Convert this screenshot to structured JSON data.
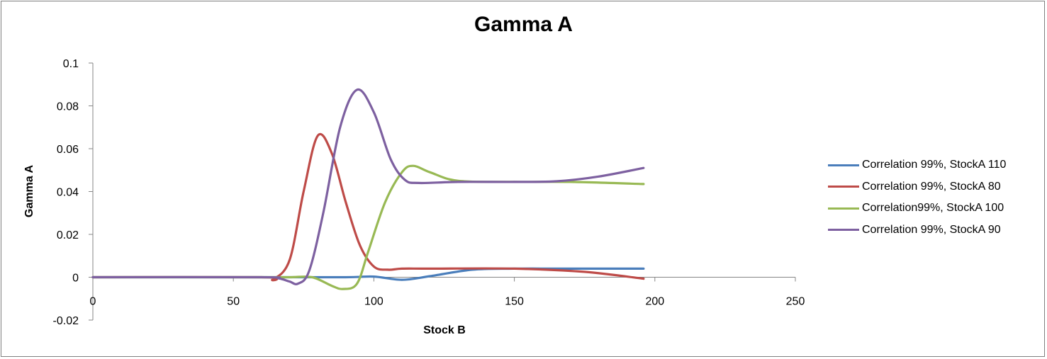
{
  "chart_data": {
    "type": "line",
    "title": "Gamma A",
    "xlabel": "Stock B",
    "ylabel": "Gamma A",
    "xlim": [
      0,
      250
    ],
    "ylim": [
      -0.02,
      0.1
    ],
    "x_ticks": [
      "0",
      "50",
      "100",
      "150",
      "200",
      "250"
    ],
    "y_ticks": [
      "-0.02",
      "0",
      "0.02",
      "0.04",
      "0.06",
      "0.08",
      "0.1"
    ],
    "legend_position": "right",
    "grid": false,
    "series": [
      {
        "name": "Correlation 99%, StockA 110",
        "color": "#4a7ebb",
        "x": [
          0,
          60,
          90,
          100,
          110,
          120,
          135,
          150,
          170,
          196
        ],
        "y": [
          0,
          0,
          0,
          0.0003,
          -0.0012,
          0.0005,
          0.0035,
          0.004,
          0.004,
          0.004
        ]
      },
      {
        "name": "Correlation 99%, StockA 80",
        "color": "#be4b48",
        "x": [
          0,
          60,
          64,
          70,
          75,
          80,
          85,
          90,
          95,
          100,
          105,
          110,
          120,
          150,
          175,
          196
        ],
        "y": [
          0,
          0,
          -0.001,
          0.008,
          0.04,
          0.066,
          0.058,
          0.035,
          0.015,
          0.005,
          0.0035,
          0.004,
          0.004,
          0.004,
          0.0025,
          -0.0007
        ]
      },
      {
        "name": "Correlation99%, StockA 100",
        "color": "#98b954",
        "x": [
          0,
          60,
          70,
          78,
          85,
          89,
          94,
          98,
          104,
          110,
          114,
          120,
          130,
          150,
          170,
          196
        ],
        "y": [
          0,
          0,
          0,
          0,
          -0.004,
          -0.0055,
          -0.003,
          0.012,
          0.035,
          0.049,
          0.052,
          0.049,
          0.045,
          0.0445,
          0.0445,
          0.0435
        ]
      },
      {
        "name": "Correlation 99%, StockA 90",
        "color": "#7d60a0",
        "x": [
          0,
          60,
          66,
          70,
          73,
          77,
          82,
          88,
          94,
          100,
          106,
          111,
          116,
          130,
          150,
          165,
          180,
          196
        ],
        "y": [
          0,
          0,
          -0.0005,
          -0.002,
          -0.003,
          0.003,
          0.03,
          0.07,
          0.0875,
          0.077,
          0.055,
          0.0455,
          0.044,
          0.0445,
          0.0445,
          0.0448,
          0.047,
          0.051
        ]
      }
    ]
  }
}
